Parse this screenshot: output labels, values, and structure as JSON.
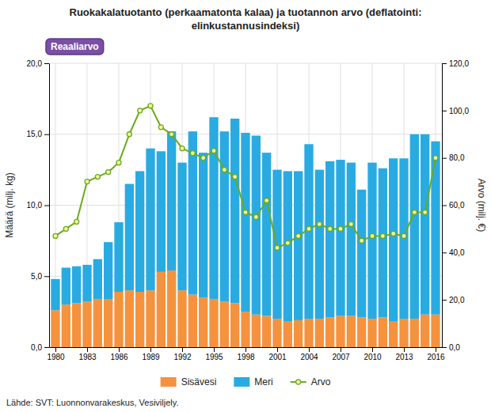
{
  "chart_data": {
    "type": "bar",
    "title": "Ruokakalatuotanto (perkaamatonta kalaa) ja tuotannon arvo (deflatointi:\nelinkustannusindeksi)",
    "ylabel": "Määrä (milj. kg)",
    "y2label": "Arvo (milj. €)",
    "annotations": [
      "Reaaliarvo",
      "Lähde: SVT: Luonnonvarakeskus, Vesiviljely."
    ],
    "x": [
      1980,
      1981,
      1982,
      1983,
      1984,
      1985,
      1986,
      1987,
      1988,
      1989,
      1990,
      1991,
      1992,
      1993,
      1994,
      1995,
      1996,
      1997,
      1998,
      1999,
      2000,
      2001,
      2002,
      2003,
      2004,
      2005,
      2006,
      2007,
      2008,
      2009,
      2010,
      2011,
      2012,
      2013,
      2014,
      2015,
      2016
    ],
    "xlim": [
      1979.4,
      2016.6
    ],
    "xticks": [
      1980,
      1983,
      1986,
      1989,
      1992,
      1995,
      1998,
      2001,
      2004,
      2007,
      2010,
      2013,
      2016
    ],
    "ylim": [
      0,
      20
    ],
    "yticks": [
      {
        "value": 0.0,
        "label": "0,0"
      },
      {
        "value": 5.0,
        "label": "5,0"
      },
      {
        "value": 10.0,
        "label": "10,0"
      },
      {
        "value": 15.0,
        "label": "15,0"
      },
      {
        "value": 20.0,
        "label": "20,0"
      }
    ],
    "y2lim": [
      0,
      120
    ],
    "y2ticks": [
      {
        "value": 0.0,
        "label": "0,0"
      },
      {
        "value": 20.0,
        "label": "20,0"
      },
      {
        "value": 40.0,
        "label": "40,0"
      },
      {
        "value": 60.0,
        "label": "60,0"
      },
      {
        "value": 80.0,
        "label": "80,0"
      },
      {
        "value": 100.0,
        "label": "100,0"
      },
      {
        "value": 120.0,
        "label": "120,0"
      }
    ],
    "stacked": true,
    "grid": true,
    "legend": "bottom",
    "series": [
      {
        "name": "Sisävesi",
        "type": "bar",
        "color": "#f5923e",
        "values": [
          2.6,
          3.0,
          3.1,
          3.2,
          3.4,
          3.4,
          3.9,
          4.0,
          3.9,
          4.0,
          5.3,
          5.4,
          4.0,
          3.7,
          3.5,
          3.4,
          3.2,
          3.1,
          2.5,
          2.3,
          2.2,
          2.0,
          1.8,
          1.9,
          2.0,
          2.0,
          2.1,
          2.2,
          2.2,
          2.1,
          2.0,
          2.1,
          1.8,
          2.0,
          2.0,
          2.3,
          2.3
        ]
      },
      {
        "name": "Meri",
        "type": "bar",
        "color": "#29abe2",
        "values": [
          2.2,
          2.6,
          2.6,
          2.6,
          2.8,
          4.0,
          4.9,
          7.5,
          8.5,
          10.0,
          8.5,
          9.8,
          9.0,
          11.5,
          10.2,
          12.8,
          12.0,
          13.0,
          12.6,
          12.6,
          11.5,
          10.5,
          10.6,
          10.5,
          12.3,
          10.5,
          11.0,
          11.0,
          10.8,
          9.0,
          11.0,
          10.5,
          11.5,
          11.3,
          13.0,
          12.7,
          12.2
        ]
      },
      {
        "name": "Arvo",
        "type": "line",
        "axis": "y2",
        "color": "#6aab1e",
        "marker": "circle",
        "values": [
          47,
          50,
          53,
          70,
          72,
          74,
          78,
          90,
          100,
          102,
          93,
          90,
          84,
          82,
          80,
          83,
          75,
          72,
          57,
          55,
          62,
          42,
          44,
          47,
          50,
          52,
          50,
          50,
          52,
          45,
          47,
          47,
          48,
          47,
          57,
          57,
          80
        ]
      }
    ]
  }
}
